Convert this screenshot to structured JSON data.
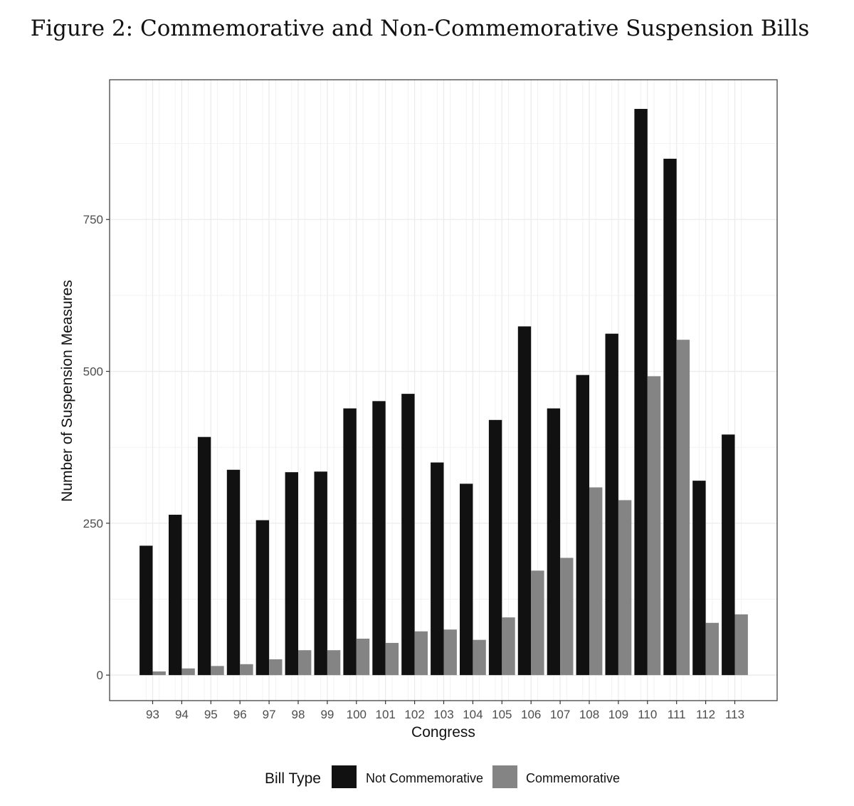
{
  "figure_title": "Figure 2: Commemorative and Non-Commemorative Suspension Bills",
  "chart_data": {
    "type": "bar",
    "title": "Figure 2: Commemorative and Non-Commemorative Suspension Bills",
    "xlabel": "Congress",
    "ylabel": "Number of Suspension Measures",
    "categories": [
      "93",
      "94",
      "95",
      "96",
      "97",
      "98",
      "99",
      "100",
      "101",
      "102",
      "103",
      "104",
      "105",
      "106",
      "107",
      "108",
      "109",
      "110",
      "111",
      "112",
      "113"
    ],
    "series": [
      {
        "name": "Not Commemorative",
        "color": "#111111",
        "values": [
          213,
          264,
          392,
          338,
          255,
          334,
          335,
          439,
          451,
          463,
          350,
          315,
          420,
          574,
          439,
          494,
          562,
          932,
          850,
          320,
          396
        ]
      },
      {
        "name": "Commemorative",
        "color": "#848484",
        "values": [
          6,
          11,
          15,
          18,
          26,
          41,
          41,
          60,
          53,
          72,
          75,
          58,
          95,
          172,
          193,
          309,
          288,
          492,
          552,
          86,
          100
        ]
      }
    ],
    "ylim": [
      -42,
      980
    ],
    "yticks": [
      0,
      250,
      500,
      750
    ],
    "grid": true,
    "legend": {
      "title": "Bill Type",
      "position": "bottom",
      "labels": [
        "Not Commemorative",
        "Commemorative"
      ]
    }
  }
}
